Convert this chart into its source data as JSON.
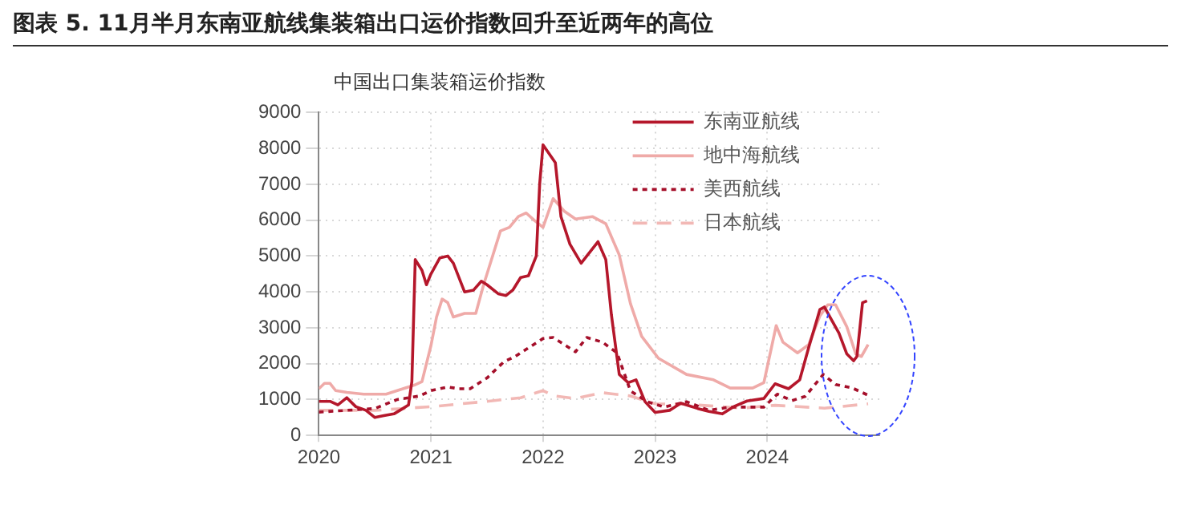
{
  "chart_data": {
    "type": "line",
    "title": "图表 5. 11月半月东南亚航线集装箱出口运价指数回升至近两年的高位",
    "ylabel": "中国出口集装箱运价指数",
    "xlim": [
      2020,
      2025
    ],
    "xticks": [
      2020,
      2021,
      2022,
      2023,
      2024
    ],
    "ylim": [
      0,
      9000
    ],
    "yticks": [
      0,
      1000,
      2000,
      3000,
      4000,
      5000,
      6000,
      7000,
      8000,
      9000
    ],
    "grid": true,
    "legend": "top right",
    "marker": "none",
    "series": [
      {
        "name": "东南亚航线",
        "color": "#b5172b",
        "line_style": "solid",
        "x": [
          2020.0,
          2020.1,
          2020.17,
          2020.25,
          2020.33,
          2020.42,
          2020.5,
          2020.58,
          2020.67,
          2020.75,
          2020.8,
          2020.83,
          2020.86,
          2020.92,
          2020.96,
          2021.0,
          2021.08,
          2021.15,
          2021.2,
          2021.3,
          2021.38,
          2021.45,
          2021.5,
          2021.6,
          2021.67,
          2021.73,
          2021.8,
          2021.87,
          2021.94,
          2021.97,
          2022.0,
          2022.11,
          2022.16,
          2022.24,
          2022.34,
          2022.49,
          2022.56,
          2022.61,
          2022.68,
          2022.76,
          2022.83,
          2022.91,
          2023.0,
          2023.13,
          2023.23,
          2023.38,
          2023.48,
          2023.6,
          2023.7,
          2023.82,
          2023.97,
          2024.07,
          2024.19,
          2024.29,
          2024.37,
          2024.47,
          2024.51,
          2024.56,
          2024.64,
          2024.71,
          2024.77,
          2024.8,
          2024.85,
          2024.89
        ],
        "values": [
          950,
          950,
          850,
          1050,
          800,
          700,
          500,
          550,
          600,
          750,
          850,
          1500,
          4900,
          4600,
          4200,
          4500,
          4950,
          5000,
          4800,
          4000,
          4050,
          4300,
          4200,
          3950,
          3900,
          4050,
          4400,
          4450,
          5000,
          7000,
          8100,
          7600,
          6100,
          5330,
          4800,
          5400,
          4900,
          3360,
          1700,
          1470,
          1550,
          940,
          640,
          700,
          900,
          750,
          670,
          600,
          800,
          960,
          1030,
          1440,
          1300,
          1550,
          2450,
          3510,
          3580,
          3300,
          2850,
          2270,
          2080,
          2200,
          3700,
          3750
        ]
      },
      {
        "name": "地中海航线",
        "color": "#efaaa8",
        "line_style": "solid",
        "x": [
          2020.0,
          2020.05,
          2020.1,
          2020.15,
          2020.25,
          2020.4,
          2020.6,
          2020.75,
          2020.85,
          2020.92,
          2021.0,
          2021.05,
          2021.1,
          2021.15,
          2021.2,
          2021.3,
          2021.4,
          2021.47,
          2021.55,
          2021.62,
          2021.7,
          2021.78,
          2021.85,
          2021.92,
          2022.0,
          2022.09,
          2022.19,
          2022.29,
          2022.44,
          2022.56,
          2022.68,
          2022.78,
          2022.88,
          2023.03,
          2023.28,
          2023.52,
          2023.67,
          2023.87,
          2023.97,
          2024.08,
          2024.14,
          2024.27,
          2024.37,
          2024.47,
          2024.54,
          2024.61,
          2024.71,
          2024.79,
          2024.84,
          2024.9
        ],
        "values": [
          1300,
          1450,
          1450,
          1250,
          1200,
          1150,
          1150,
          1300,
          1400,
          1500,
          2500,
          3300,
          3800,
          3700,
          3300,
          3400,
          3400,
          4200,
          5000,
          5700,
          5800,
          6100,
          6200,
          6000,
          5800,
          6600,
          6250,
          6030,
          6100,
          5900,
          5030,
          3670,
          2760,
          2150,
          1700,
          1550,
          1320,
          1320,
          1470,
          3060,
          2600,
          2300,
          2530,
          3330,
          3640,
          3640,
          3030,
          2270,
          2200,
          2530
        ]
      },
      {
        "name": "美西航线",
        "color": "#a50f2a",
        "line_style": "dotted",
        "x": [
          2020.0,
          2020.25,
          2020.5,
          2020.7,
          2020.9,
          2021.0,
          2021.15,
          2021.25,
          2021.35,
          2021.5,
          2021.65,
          2021.75,
          2021.85,
          2022.0,
          2022.09,
          2022.29,
          2022.39,
          2022.53,
          2022.66,
          2022.78,
          2022.93,
          2023.08,
          2023.28,
          2023.48,
          2023.67,
          2023.97,
          2024.09,
          2024.22,
          2024.34,
          2024.5,
          2024.61,
          2024.76,
          2024.9
        ],
        "values": [
          650,
          700,
          750,
          1000,
          1100,
          1250,
          1350,
          1300,
          1300,
          1600,
          2050,
          2200,
          2400,
          2700,
          2730,
          2330,
          2730,
          2600,
          2300,
          1240,
          940,
          790,
          940,
          700,
          790,
          790,
          1150,
          970,
          1090,
          1700,
          1420,
          1320,
          1120
        ]
      },
      {
        "name": "日本航线",
        "color": "#f2b8b5",
        "line_style": "dashed",
        "x": [
          2020.0,
          2020.5,
          2021.0,
          2021.5,
          2021.8,
          2022.0,
          2022.1,
          2022.29,
          2022.53,
          2022.78,
          2023.0,
          2023.28,
          2023.77,
          2024.07,
          2024.51,
          2024.9
        ],
        "values": [
          700,
          700,
          800,
          950,
          1050,
          1250,
          1100,
          1030,
          1190,
          1100,
          880,
          870,
          760,
          840,
          760,
          880
        ]
      }
    ]
  }
}
